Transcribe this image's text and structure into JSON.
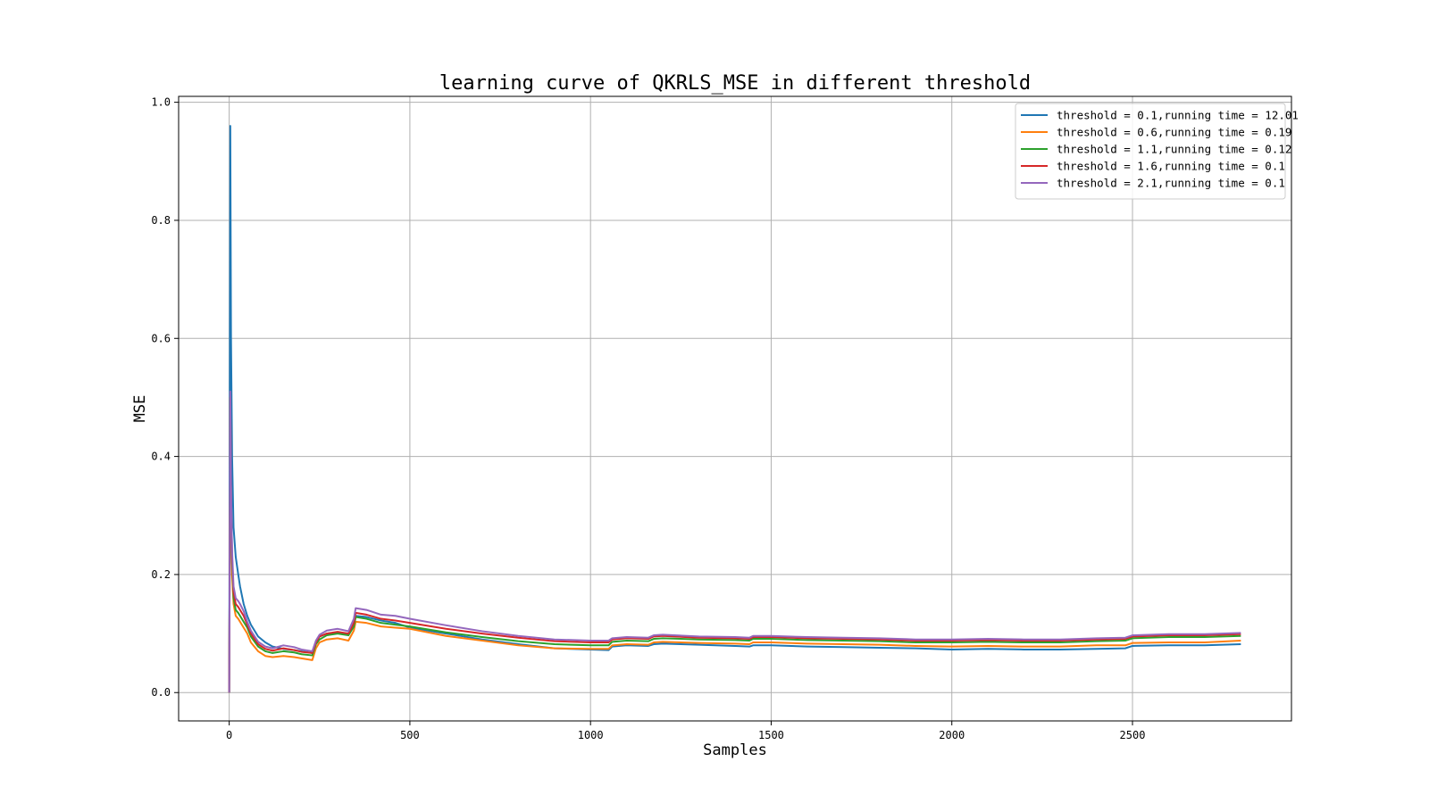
{
  "chart_data": {
    "type": "line",
    "title": "learning curve of QKRLS_MSE in different threshold",
    "xlabel": "Samples",
    "ylabel": "MSE",
    "xlim": [
      -140,
      2940
    ],
    "ylim": [
      -0.048,
      1.01
    ],
    "xticks": [
      0,
      500,
      1000,
      1500,
      2000,
      2500
    ],
    "yticks": [
      0.0,
      0.2,
      0.4,
      0.6,
      0.8,
      1.0
    ],
    "xtick_labels": [
      "0",
      "500",
      "1000",
      "1500",
      "2000",
      "2500"
    ],
    "ytick_labels": [
      "0.0",
      "0.2",
      "0.4",
      "0.6",
      "0.8",
      "1.0"
    ],
    "grid": true,
    "legend_position": "top-right",
    "series": [
      {
        "name": "threshold = 0.1,running time = 12.01",
        "color": "#1f77b4",
        "x": [
          0,
          3,
          5,
          8,
          12,
          18,
          25,
          30,
          40,
          50,
          60,
          80,
          100,
          120,
          150,
          180,
          200,
          230,
          240,
          250,
          270,
          300,
          330,
          345,
          350,
          380,
          420,
          460,
          500,
          600,
          700,
          800,
          900,
          1000,
          1050,
          1060,
          1100,
          1160,
          1175,
          1200,
          1300,
          1400,
          1440,
          1450,
          1500,
          1600,
          1700,
          1800,
          1900,
          2000,
          2100,
          2200,
          2300,
          2400,
          2480,
          2500,
          2600,
          2700,
          2800
        ],
        "y": [
          0.0,
          0.96,
          0.6,
          0.4,
          0.28,
          0.23,
          0.2,
          0.18,
          0.15,
          0.13,
          0.115,
          0.095,
          0.085,
          0.078,
          0.074,
          0.072,
          0.07,
          0.067,
          0.085,
          0.095,
          0.1,
          0.102,
          0.1,
          0.115,
          0.13,
          0.128,
          0.122,
          0.118,
          0.11,
          0.1,
          0.09,
          0.082,
          0.075,
          0.073,
          0.072,
          0.078,
          0.08,
          0.079,
          0.082,
          0.083,
          0.081,
          0.079,
          0.078,
          0.08,
          0.08,
          0.078,
          0.077,
          0.076,
          0.075,
          0.073,
          0.074,
          0.073,
          0.073,
          0.074,
          0.075,
          0.079,
          0.08,
          0.08,
          0.082
        ]
      },
      {
        "name": "threshold = 0.6,running time = 0.19",
        "color": "#ff7f0e",
        "x": [
          0,
          3,
          5,
          8,
          12,
          18,
          25,
          30,
          40,
          50,
          60,
          80,
          100,
          120,
          150,
          180,
          200,
          230,
          240,
          250,
          270,
          300,
          330,
          345,
          350,
          380,
          420,
          460,
          500,
          600,
          700,
          800,
          900,
          1000,
          1050,
          1060,
          1100,
          1160,
          1175,
          1200,
          1300,
          1400,
          1440,
          1450,
          1500,
          1600,
          1700,
          1800,
          1900,
          2000,
          2100,
          2200,
          2300,
          2400,
          2480,
          2500,
          2600,
          2700,
          2800
        ],
        "y": [
          0.0,
          0.45,
          0.3,
          0.2,
          0.15,
          0.13,
          0.125,
          0.12,
          0.11,
          0.1,
          0.085,
          0.07,
          0.062,
          0.06,
          0.062,
          0.06,
          0.058,
          0.055,
          0.075,
          0.085,
          0.09,
          0.092,
          0.088,
          0.105,
          0.12,
          0.118,
          0.112,
          0.11,
          0.108,
          0.096,
          0.088,
          0.08,
          0.075,
          0.074,
          0.074,
          0.08,
          0.082,
          0.081,
          0.085,
          0.086,
          0.084,
          0.083,
          0.082,
          0.085,
          0.085,
          0.083,
          0.082,
          0.081,
          0.079,
          0.078,
          0.079,
          0.078,
          0.078,
          0.08,
          0.08,
          0.084,
          0.085,
          0.085,
          0.088
        ]
      },
      {
        "name": "threshold = 1.1,running time = 0.12",
        "color": "#2ca02c",
        "x": [
          0,
          3,
          5,
          8,
          12,
          18,
          25,
          30,
          40,
          50,
          60,
          80,
          100,
          120,
          150,
          180,
          200,
          230,
          240,
          250,
          270,
          300,
          330,
          345,
          350,
          380,
          420,
          460,
          500,
          600,
          700,
          800,
          900,
          1000,
          1050,
          1060,
          1100,
          1160,
          1175,
          1200,
          1300,
          1400,
          1440,
          1450,
          1500,
          1600,
          1700,
          1800,
          1900,
          2000,
          2100,
          2200,
          2300,
          2400,
          2480,
          2500,
          2600,
          2700,
          2800
        ],
        "y": [
          0.0,
          0.5,
          0.32,
          0.22,
          0.16,
          0.14,
          0.135,
          0.13,
          0.12,
          0.11,
          0.095,
          0.078,
          0.07,
          0.067,
          0.07,
          0.068,
          0.065,
          0.063,
          0.082,
          0.09,
          0.097,
          0.1,
          0.097,
          0.112,
          0.128,
          0.125,
          0.118,
          0.115,
          0.112,
          0.102,
          0.094,
          0.087,
          0.082,
          0.08,
          0.08,
          0.086,
          0.088,
          0.087,
          0.091,
          0.092,
          0.09,
          0.089,
          0.088,
          0.091,
          0.091,
          0.089,
          0.088,
          0.087,
          0.085,
          0.085,
          0.086,
          0.085,
          0.085,
          0.087,
          0.088,
          0.092,
          0.094,
          0.094,
          0.096
        ]
      },
      {
        "name": "threshold = 1.6,running time = 0.1",
        "color": "#d62728",
        "x": [
          0,
          3,
          5,
          8,
          12,
          18,
          25,
          30,
          40,
          50,
          60,
          80,
          100,
          120,
          150,
          180,
          200,
          230,
          240,
          250,
          270,
          300,
          330,
          345,
          350,
          380,
          420,
          460,
          500,
          600,
          700,
          800,
          900,
          1000,
          1050,
          1060,
          1100,
          1160,
          1175,
          1200,
          1300,
          1400,
          1440,
          1450,
          1500,
          1600,
          1700,
          1800,
          1900,
          2000,
          2100,
          2200,
          2300,
          2400,
          2480,
          2500,
          2600,
          2700,
          2800
        ],
        "y": [
          0.0,
          0.5,
          0.34,
          0.23,
          0.17,
          0.15,
          0.145,
          0.14,
          0.13,
          0.115,
          0.1,
          0.082,
          0.074,
          0.071,
          0.075,
          0.072,
          0.069,
          0.067,
          0.085,
          0.095,
          0.1,
          0.103,
          0.1,
          0.118,
          0.135,
          0.132,
          0.125,
          0.122,
          0.118,
          0.108,
          0.1,
          0.093,
          0.087,
          0.085,
          0.085,
          0.09,
          0.092,
          0.091,
          0.095,
          0.096,
          0.093,
          0.092,
          0.091,
          0.094,
          0.094,
          0.092,
          0.091,
          0.09,
          0.088,
          0.088,
          0.089,
          0.088,
          0.088,
          0.09,
          0.091,
          0.095,
          0.097,
          0.097,
          0.099
        ]
      },
      {
        "name": "threshold = 2.1,running time = 0.1",
        "color": "#9467bd",
        "x": [
          0,
          3,
          5,
          8,
          12,
          18,
          25,
          30,
          40,
          50,
          60,
          80,
          100,
          120,
          150,
          180,
          200,
          230,
          240,
          250,
          270,
          300,
          330,
          345,
          350,
          380,
          420,
          460,
          500,
          600,
          700,
          800,
          900,
          1000,
          1050,
          1060,
          1100,
          1160,
          1175,
          1200,
          1300,
          1400,
          1440,
          1450,
          1500,
          1600,
          1700,
          1800,
          1900,
          2000,
          2100,
          2200,
          2300,
          2400,
          2480,
          2500,
          2600,
          2700,
          2800
        ],
        "y": [
          0.0,
          0.51,
          0.35,
          0.24,
          0.18,
          0.16,
          0.155,
          0.15,
          0.138,
          0.12,
          0.105,
          0.086,
          0.078,
          0.075,
          0.08,
          0.077,
          0.073,
          0.07,
          0.088,
          0.098,
          0.105,
          0.108,
          0.104,
          0.125,
          0.143,
          0.14,
          0.132,
          0.13,
          0.125,
          0.114,
          0.104,
          0.096,
          0.09,
          0.088,
          0.088,
          0.092,
          0.094,
          0.093,
          0.097,
          0.098,
          0.095,
          0.094,
          0.093,
          0.096,
          0.096,
          0.094,
          0.093,
          0.092,
          0.09,
          0.09,
          0.091,
          0.09,
          0.09,
          0.092,
          0.093,
          0.097,
          0.099,
          0.099,
          0.101
        ]
      }
    ]
  }
}
